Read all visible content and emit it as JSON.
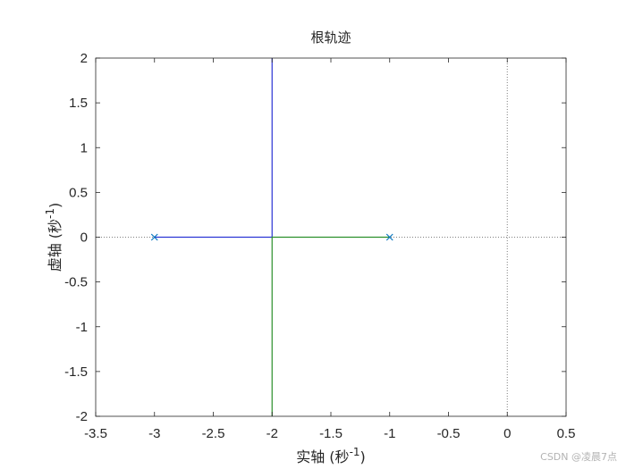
{
  "chart_data": {
    "type": "line",
    "title": "根轨迹",
    "xlabel": {
      "text": "实轴 (秒",
      "sup": "-1",
      "close": ")"
    },
    "ylabel": {
      "text": "虚轴 (秒",
      "sup": "-1",
      "close": ")"
    },
    "xlim": [
      -3.5,
      0.5
    ],
    "ylim": [
      -2,
      2
    ],
    "xticks": [
      -3.5,
      -3,
      -2.5,
      -2,
      -1.5,
      -1,
      -0.5,
      0,
      0.5
    ],
    "xtick_labels": [
      "-3.5",
      "-3",
      "-2.5",
      "-2",
      "-1.5",
      "-1",
      "-0.5",
      "0",
      "0.5"
    ],
    "yticks": [
      -2,
      -1.5,
      -1,
      -0.5,
      0,
      0.5,
      1,
      1.5,
      2
    ],
    "ytick_labels": [
      "-2",
      "-1.5",
      "-1",
      "-0.5",
      "0",
      "0.5",
      "1",
      "1.5",
      "2"
    ],
    "grid": false,
    "legend": "none",
    "reference_lines": {
      "x0": 0,
      "y0": 0,
      "style": "dotted",
      "color": "#7f7f7f"
    },
    "series": [
      {
        "points": [
          [
            -3,
            0
          ],
          [
            -2,
            0
          ],
          [
            -2,
            2
          ]
        ],
        "color": "#2a34d4"
      },
      {
        "points": [
          [
            -1,
            0
          ],
          [
            -2,
            0
          ],
          [
            -2,
            -2
          ]
        ],
        "color": "#2a8f2a"
      }
    ],
    "poles": {
      "points": [
        [
          -3,
          0
        ],
        [
          -1,
          0
        ]
      ],
      "marker": "x",
      "color": "#0072bd"
    }
  },
  "watermark": "CSDN @凌晨7点",
  "colors": {
    "axis": "#262626",
    "background": "#ffffff"
  }
}
